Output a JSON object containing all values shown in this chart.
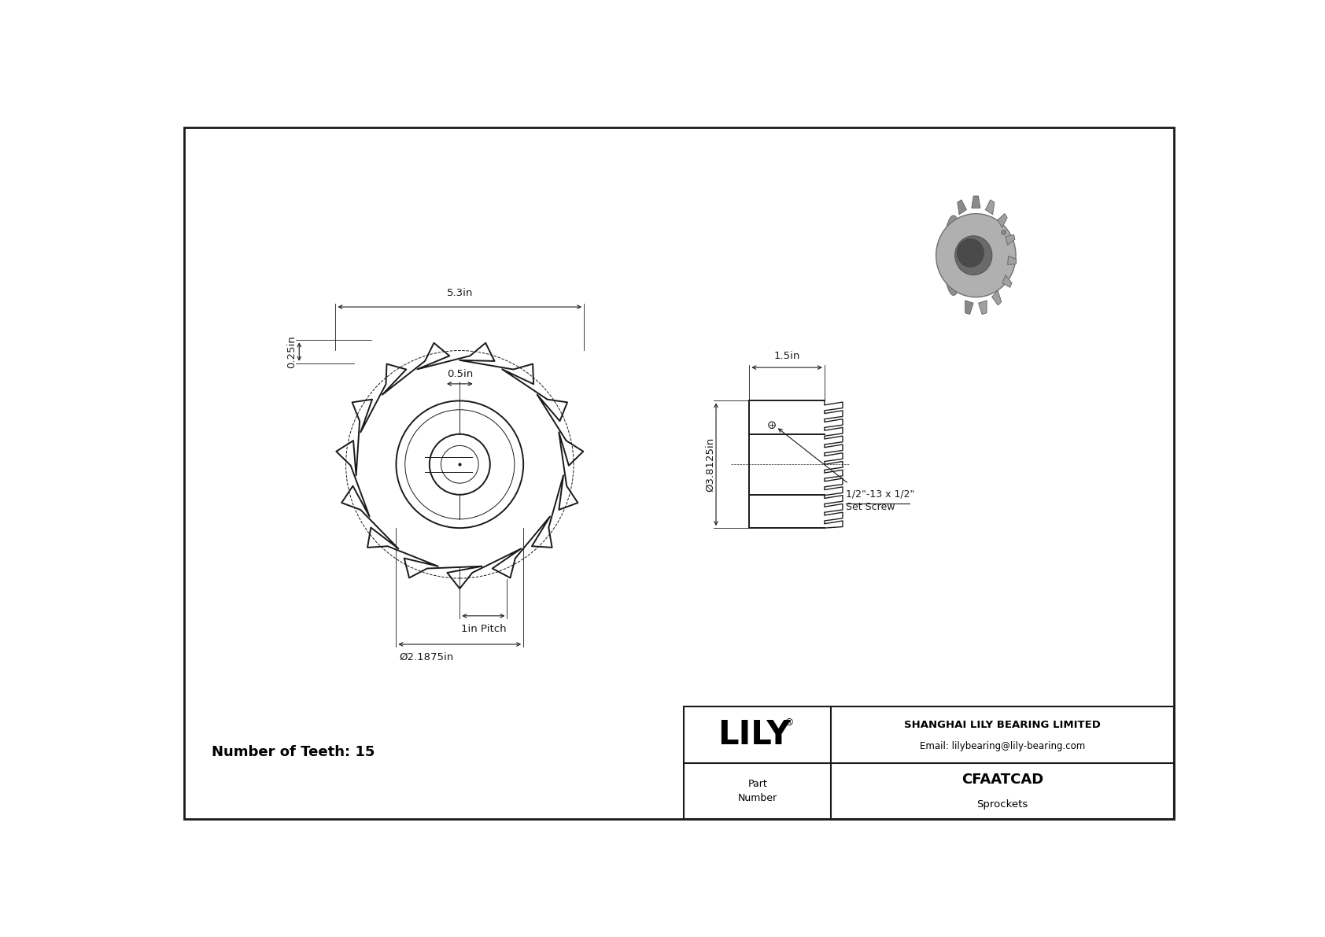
{
  "bg_color": "#ffffff",
  "line_color": "#1a1a1a",
  "num_teeth": 15,
  "part_number": "CFAATCAD",
  "category": "Sprockets",
  "company": "SHANGHAI LILY BEARING LIMITED",
  "email": "Email: lilybearing@lily-bearing.com",
  "lily_text": "LILY",
  "number_of_teeth_label": "Number of Teeth: 15",
  "dim_53": "5.3in",
  "dim_05": "0.5in",
  "dim_025": "0.25in",
  "dim_1pitch": "1in Pitch",
  "dim_21875": "Ø2.1875in",
  "dim_15": "1.5in",
  "dim_38125": "Ø3.8125in",
  "set_screw_line1": "1/2\"-13 x 1/2\"",
  "set_screw_line2": "Set Screw"
}
